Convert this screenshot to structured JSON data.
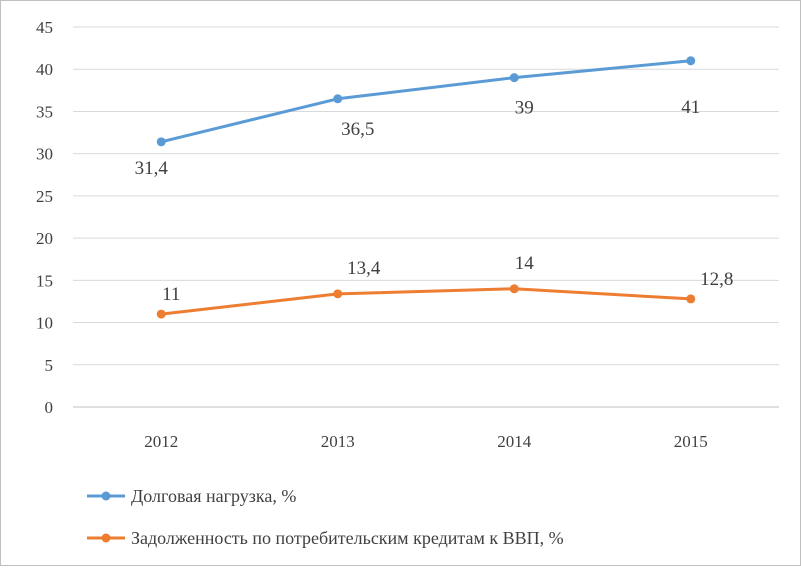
{
  "chart_data": {
    "type": "line",
    "title": "",
    "xlabel": "",
    "ylabel": "",
    "categories": [
      "2012",
      "2013",
      "2014",
      "2015"
    ],
    "ylim": [
      0,
      45
    ],
    "yticks": [
      "0",
      "5",
      "10",
      "15",
      "20",
      "25",
      "30",
      "35",
      "40",
      "45"
    ],
    "grid": true,
    "legend_position": "bottom-left",
    "series": [
      {
        "name": "Долговая нагрузка, %",
        "color": "#5b9bd5",
        "values": [
          31.4,
          36.5,
          39,
          41
        ],
        "data_labels": [
          "31,4",
          "36,5",
          "39",
          "41"
        ]
      },
      {
        "name": "Задолженность по потребительским кредитам к ВВП, %",
        "color": "#ed7d31",
        "values": [
          11,
          13.4,
          14,
          12.8
        ],
        "data_labels": [
          "11",
          "13,4",
          "14",
          "12,8"
        ]
      }
    ]
  }
}
